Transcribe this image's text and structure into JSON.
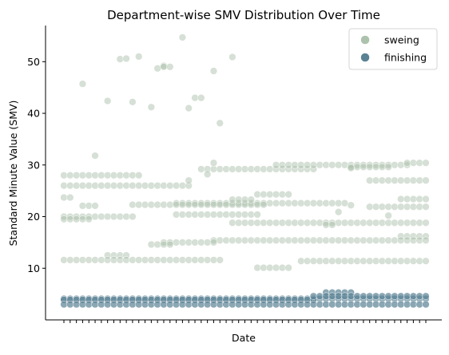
{
  "chart_data": {
    "type": "scatter",
    "title": "Department-wise SMV Distribution Over Time",
    "xlabel": "Date",
    "ylabel": "Standard Minute Value (SMV)",
    "ylim": [
      0,
      57
    ],
    "yticks": [
      10,
      20,
      30,
      40,
      50
    ],
    "x_tick_count": 59,
    "x_tick_labels_shown": false,
    "grid": false,
    "legend_position": "top-right",
    "colors": {
      "sweing": "#a3bba3",
      "finishing": "#5a8294"
    },
    "series": [
      {
        "name": "sweing",
        "color": "#a3bba3",
        "opacity": 0.45,
        "bands": [
          {
            "y": 28.0,
            "x_from": 0,
            "x_to": 12
          },
          {
            "y": 26.0,
            "x_from": 0,
            "x_to": 20
          },
          {
            "y": 27.0,
            "x_from": 20,
            "x_to": 20
          },
          {
            "y": 29.2,
            "x_from": 22,
            "x_to": 40
          },
          {
            "y": 30.0,
            "x_from": 34,
            "x_to": 55
          },
          {
            "y": 30.4,
            "x_from": 55,
            "x_to": 58
          },
          {
            "y": 29.6,
            "x_from": 46,
            "x_to": 52
          },
          {
            "y": 27.0,
            "x_from": 49,
            "x_to": 58
          },
          {
            "y": 23.7,
            "x_from": 0,
            "x_to": 1
          },
          {
            "y": 22.6,
            "x_from": 18,
            "x_to": 45
          },
          {
            "y": 22.3,
            "x_from": 11,
            "x_to": 32
          },
          {
            "y": 24.3,
            "x_from": 31,
            "x_to": 36
          },
          {
            "y": 23.3,
            "x_from": 27,
            "x_to": 30
          },
          {
            "y": 23.4,
            "x_from": 54,
            "x_to": 58
          },
          {
            "y": 22.1,
            "x_from": 3,
            "x_to": 5
          },
          {
            "y": 21.9,
            "x_from": 49,
            "x_to": 58
          },
          {
            "y": 20.4,
            "x_from": 18,
            "x_to": 31
          },
          {
            "y": 20.0,
            "x_from": 0,
            "x_to": 11
          },
          {
            "y": 19.5,
            "x_from": 0,
            "x_to": 4
          },
          {
            "y": 18.8,
            "x_from": 27,
            "x_to": 58
          },
          {
            "y": 18.4,
            "x_from": 42,
            "x_to": 43
          },
          {
            "y": 16.2,
            "x_from": 54,
            "x_to": 58
          },
          {
            "y": 15.4,
            "x_from": 24,
            "x_to": 58
          },
          {
            "y": 15.0,
            "x_from": 16,
            "x_to": 24
          },
          {
            "y": 14.6,
            "x_from": 14,
            "x_to": 17
          },
          {
            "y": 12.5,
            "x_from": 7,
            "x_to": 10
          },
          {
            "y": 11.6,
            "x_from": 0,
            "x_to": 25
          },
          {
            "y": 11.4,
            "x_from": 38,
            "x_to": 58
          },
          {
            "y": 10.1,
            "x_from": 31,
            "x_to": 36
          }
        ],
        "points": [
          {
            "x": 3,
            "y": 45.7
          },
          {
            "x": 7,
            "y": 42.4
          },
          {
            "x": 9,
            "y": 50.5
          },
          {
            "x": 10,
            "y": 50.6
          },
          {
            "x": 11,
            "y": 42.2
          },
          {
            "x": 12,
            "y": 51.0
          },
          {
            "x": 14,
            "y": 41.2
          },
          {
            "x": 15,
            "y": 48.7
          },
          {
            "x": 16,
            "y": 49.2
          },
          {
            "x": 16,
            "y": 49.0
          },
          {
            "x": 17,
            "y": 49.0
          },
          {
            "x": 19,
            "y": 54.7
          },
          {
            "x": 20,
            "y": 41.0
          },
          {
            "x": 21,
            "y": 43.0
          },
          {
            "x": 22,
            "y": 43.0
          },
          {
            "x": 24,
            "y": 48.2
          },
          {
            "x": 25,
            "y": 38.1
          },
          {
            "x": 27,
            "y": 50.9
          },
          {
            "x": 5,
            "y": 31.8
          },
          {
            "x": 24,
            "y": 30.4
          },
          {
            "x": 23,
            "y": 28.2
          },
          {
            "x": 46,
            "y": 29.4
          },
          {
            "x": 46,
            "y": 22.2
          },
          {
            "x": 44,
            "y": 20.9
          },
          {
            "x": 52,
            "y": 20.2
          }
        ]
      },
      {
        "name": "finishing",
        "color": "#5a8294",
        "opacity": 0.7,
        "bands": [
          {
            "y": 4.1,
            "x_from": 0,
            "x_to": 58
          },
          {
            "y": 3.9,
            "x_from": 0,
            "x_to": 40
          },
          {
            "y": 3.0,
            "x_from": 0,
            "x_to": 58
          },
          {
            "y": 5.3,
            "x_from": 42,
            "x_to": 46
          },
          {
            "y": 4.6,
            "x_from": 40,
            "x_to": 58
          }
        ],
        "points": []
      }
    ]
  }
}
